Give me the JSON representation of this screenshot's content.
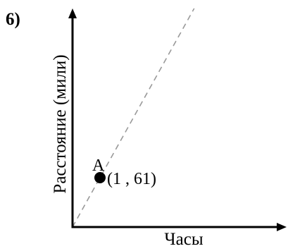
{
  "problem_number": "6)",
  "chart_data": {
    "type": "scatter",
    "title": "",
    "xlabel": "Часы",
    "ylabel": "Расстояние (мили)",
    "axis_arrows": true,
    "tick_labels": false,
    "grid": false,
    "legend": "none",
    "points": [
      {
        "label": "A",
        "x": 1,
        "y": 61,
        "annotation": "(1 , 61)"
      }
    ],
    "reference_line": {
      "style": "dashed",
      "through": "origin and point A",
      "color": "#999999"
    },
    "colors": {
      "axes": "#000000",
      "point": "#000000",
      "reference_line": "#999999"
    }
  }
}
